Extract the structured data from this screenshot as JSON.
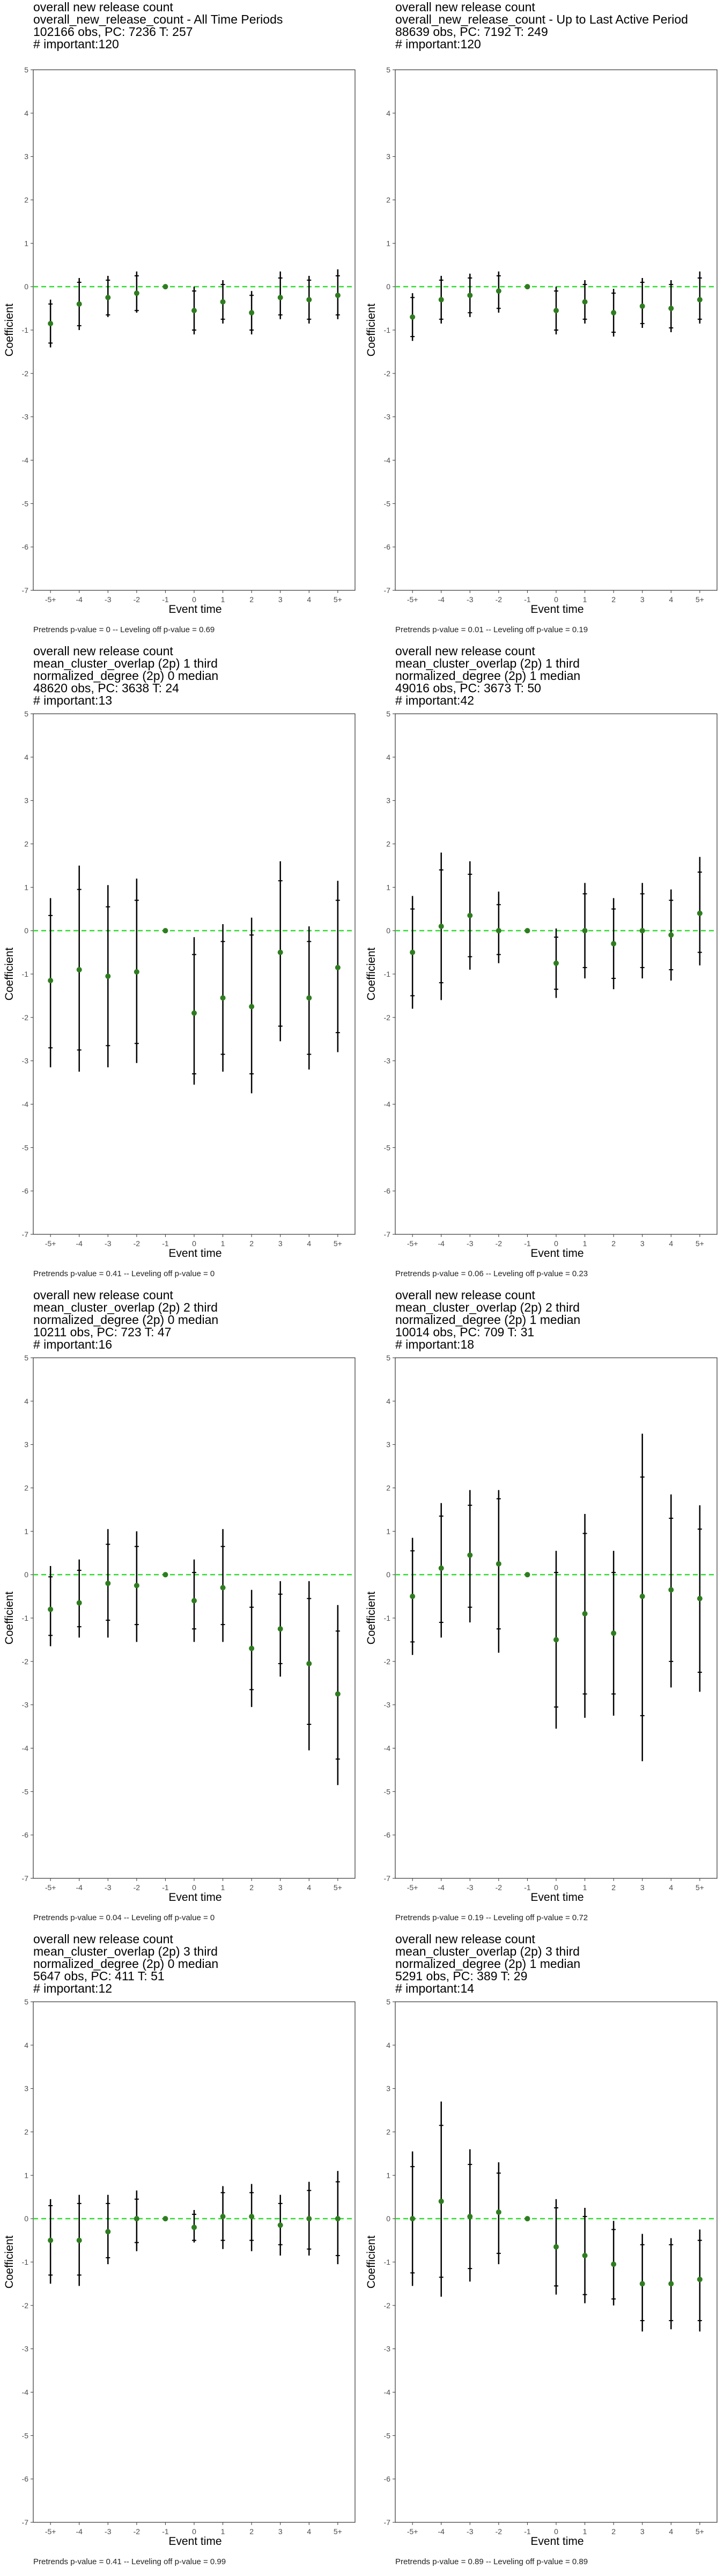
{
  "x_axis_label": "Event time",
  "y_axis_label": "Coefficient",
  "colors": {
    "point": "#2e7d1f",
    "zero_line": "#33dd33",
    "bars": "#000000",
    "frame": "#333333"
  },
  "chart_data": [
    {
      "type": "scatter",
      "title_lines": [
        "overall new release count",
        "overall_new_release_count - All Time Periods",
        "102166 obs, PC: 7236 T: 257",
        "# important:120"
      ],
      "footer": "Pretrends p-value = 0 -- Leveling off p-value = 0.69",
      "categories": [
        "-5+",
        "-4",
        "-3",
        "-2",
        "-1",
        "0",
        "1",
        "2",
        "3",
        "4",
        "5+"
      ],
      "ylim": [
        -7,
        5
      ],
      "estimate": [
        -0.85,
        -0.4,
        -0.25,
        -0.15,
        0,
        -0.55,
        -0.35,
        -0.6,
        -0.25,
        -0.3,
        -0.2
      ],
      "ci95_low": [
        -1.4,
        -1.0,
        -0.7,
        -0.6,
        0,
        -1.1,
        -0.85,
        -1.1,
        -0.75,
        -0.85,
        -0.75
      ],
      "ci95_high": [
        -0.3,
        0.2,
        0.25,
        0.35,
        0,
        0.0,
        0.15,
        -0.1,
        0.35,
        0.25,
        0.4
      ],
      "ci90_low": [
        -1.3,
        -0.9,
        -0.65,
        -0.55,
        0,
        -1.0,
        -0.75,
        -1.0,
        -0.65,
        -0.75,
        -0.65
      ],
      "ci90_high": [
        -0.4,
        0.1,
        0.15,
        0.25,
        0,
        -0.1,
        0.05,
        -0.2,
        0.2,
        0.15,
        0.25
      ]
    },
    {
      "type": "scatter",
      "title_lines": [
        "overall new release count",
        "overall_new_release_count - Up to Last Active Period",
        "88639 obs, PC: 7192 T: 249",
        "# important:120"
      ],
      "footer": "Pretrends p-value = 0.01 -- Leveling off p-value = 0.19",
      "categories": [
        "-5+",
        "-4",
        "-3",
        "-2",
        "-1",
        "0",
        "1",
        "2",
        "3",
        "4",
        "5+"
      ],
      "ylim": [
        -7,
        5
      ],
      "estimate": [
        -0.7,
        -0.3,
        -0.2,
        -0.1,
        0,
        -0.55,
        -0.35,
        -0.6,
        -0.45,
        -0.5,
        -0.3
      ],
      "ci95_low": [
        -1.25,
        -0.85,
        -0.7,
        -0.6,
        0,
        -1.1,
        -0.85,
        -1.15,
        -0.95,
        -1.05,
        -0.85
      ],
      "ci95_high": [
        -0.15,
        0.25,
        0.3,
        0.35,
        0,
        0.0,
        0.15,
        -0.05,
        0.2,
        0.15,
        0.35
      ],
      "ci90_low": [
        -1.15,
        -0.75,
        -0.6,
        -0.5,
        0,
        -1.0,
        -0.75,
        -1.05,
        -0.85,
        -0.95,
        -0.75
      ],
      "ci90_high": [
        -0.25,
        0.15,
        0.2,
        0.25,
        0,
        -0.1,
        0.05,
        -0.15,
        0.1,
        0.05,
        0.2
      ]
    },
    {
      "type": "scatter",
      "title_lines": [
        "overall new release count",
        "mean_cluster_overlap (2p) 1 third",
        "normalized_degree (2p) 0 median",
        "48620 obs, PC: 3638 T: 24",
        "# important:13"
      ],
      "footer": "Pretrends p-value = 0.41 -- Leveling off p-value = 0",
      "categories": [
        "-5+",
        "-4",
        "-3",
        "-2",
        "-1",
        "0",
        "1",
        "2",
        "3",
        "4",
        "5+"
      ],
      "ylim": [
        -7,
        5
      ],
      "estimate": [
        -1.15,
        -0.9,
        -1.05,
        -0.95,
        0,
        -1.9,
        -1.55,
        -1.75,
        -0.5,
        -1.55,
        -0.85
      ],
      "ci95_low": [
        -3.15,
        -3.25,
        -3.15,
        -3.05,
        0,
        -3.55,
        -3.25,
        -3.75,
        -2.55,
        -3.2,
        -2.8
      ],
      "ci95_high": [
        0.75,
        1.5,
        1.05,
        1.2,
        0,
        -0.15,
        0.15,
        0.3,
        1.6,
        0.1,
        1.15
      ],
      "ci90_low": [
        -2.7,
        -2.75,
        -2.65,
        -2.6,
        0,
        -3.3,
        -2.85,
        -3.3,
        -2.2,
        -2.85,
        -2.35
      ],
      "ci90_high": [
        0.35,
        0.95,
        0.55,
        0.7,
        0,
        -0.55,
        -0.25,
        -0.1,
        1.15,
        -0.25,
        0.7
      ]
    },
    {
      "type": "scatter",
      "title_lines": [
        "overall new release count",
        "mean_cluster_overlap (2p) 1 third",
        "normalized_degree (2p) 1 median",
        "49016 obs, PC: 3673 T: 50",
        "# important:42"
      ],
      "footer": "Pretrends p-value = 0.06 -- Leveling off p-value = 0.23",
      "categories": [
        "-5+",
        "-4",
        "-3",
        "-2",
        "-1",
        "0",
        "1",
        "2",
        "3",
        "4",
        "5+"
      ],
      "ylim": [
        -7,
        5
      ],
      "estimate": [
        -0.5,
        0.1,
        0.35,
        0.0,
        0,
        -0.75,
        0.0,
        -0.3,
        0.0,
        -0.1,
        0.4
      ],
      "ci95_low": [
        -1.8,
        -1.6,
        -0.9,
        -0.75,
        0,
        -1.55,
        -1.1,
        -1.35,
        -1.1,
        -1.15,
        -0.8
      ],
      "ci95_high": [
        0.8,
        1.8,
        1.6,
        0.9,
        0,
        0.05,
        1.1,
        0.75,
        1.1,
        0.95,
        1.7
      ],
      "ci90_low": [
        -1.5,
        -1.2,
        -0.6,
        -0.55,
        0,
        -1.35,
        -0.85,
        -1.1,
        -0.85,
        -0.9,
        -0.5
      ],
      "ci90_high": [
        0.5,
        1.4,
        1.3,
        0.6,
        0,
        -0.15,
        0.85,
        0.5,
        0.85,
        0.7,
        1.35
      ]
    },
    {
      "type": "scatter",
      "title_lines": [
        "overall new release count",
        "mean_cluster_overlap (2p) 2 third",
        "normalized_degree (2p) 0 median",
        "10211 obs, PC: 723 T: 47",
        "# important:16"
      ],
      "footer": "Pretrends p-value = 0.04 -- Leveling off p-value = 0",
      "categories": [
        "-5+",
        "-4",
        "-3",
        "-2",
        "-1",
        "0",
        "1",
        "2",
        "3",
        "4",
        "5+"
      ],
      "ylim": [
        -7,
        5
      ],
      "estimate": [
        -0.8,
        -0.65,
        -0.2,
        -0.25,
        0,
        -0.6,
        -0.3,
        -1.7,
        -1.25,
        -2.05,
        -2.75
      ],
      "ci95_low": [
        -1.65,
        -1.45,
        -1.45,
        -1.55,
        0,
        -1.55,
        -1.55,
        -3.05,
        -2.35,
        -4.05,
        -4.85
      ],
      "ci95_high": [
        0.2,
        0.35,
        1.05,
        1.0,
        0,
        0.35,
        1.05,
        -0.35,
        -0.15,
        -0.15,
        -0.7
      ],
      "ci90_low": [
        -1.4,
        -1.2,
        -1.05,
        -1.15,
        0,
        -1.25,
        -1.15,
        -2.65,
        -2.05,
        -3.45,
        -4.25
      ],
      "ci90_high": [
        -0.05,
        0.1,
        0.7,
        0.65,
        0,
        0.05,
        0.65,
        -0.75,
        -0.45,
        -0.55,
        -1.3
      ]
    },
    {
      "type": "scatter",
      "title_lines": [
        "overall new release count",
        "mean_cluster_overlap (2p) 2 third",
        "normalized_degree (2p) 1 median",
        "10014 obs, PC: 709 T: 31",
        "# important:18"
      ],
      "footer": "Pretrends p-value = 0.19 -- Leveling off p-value = 0.72",
      "categories": [
        "-5+",
        "-4",
        "-3",
        "-2",
        "-1",
        "0",
        "1",
        "2",
        "3",
        "4",
        "5+"
      ],
      "ylim": [
        -7,
        5
      ],
      "estimate": [
        -0.5,
        0.15,
        0.45,
        0.25,
        0,
        -1.5,
        -0.9,
        -1.35,
        -0.5,
        -0.35,
        -0.55
      ],
      "ci95_low": [
        -1.85,
        -1.45,
        -1.1,
        -1.8,
        0,
        -3.55,
        -3.3,
        -3.25,
        -4.3,
        -2.6,
        -2.7
      ],
      "ci95_high": [
        0.85,
        1.65,
        1.95,
        1.95,
        0,
        0.55,
        1.4,
        0.55,
        3.25,
        1.85,
        1.6
      ],
      "ci90_low": [
        -1.55,
        -1.1,
        -0.75,
        -1.25,
        0,
        -3.05,
        -2.75,
        -2.75,
        -3.25,
        -2.0,
        -2.25
      ],
      "ci90_high": [
        0.55,
        1.35,
        1.6,
        1.75,
        0,
        0.05,
        0.95,
        0.05,
        2.25,
        1.3,
        1.05
      ]
    },
    {
      "type": "scatter",
      "title_lines": [
        "overall new release count",
        "mean_cluster_overlap (2p) 3 third",
        "normalized_degree (2p) 0 median",
        "5647 obs, PC: 411 T: 51",
        "# important:12"
      ],
      "footer": "Pretrends p-value = 0.41 -- Leveling off p-value = 0.99",
      "categories": [
        "-5+",
        "-4",
        "-3",
        "-2",
        "-1",
        "0",
        "1",
        "2",
        "3",
        "4",
        "5+"
      ],
      "ylim": [
        -7,
        5
      ],
      "estimate": [
        -0.5,
        -0.5,
        -0.3,
        0.0,
        0,
        -0.2,
        0.05,
        0.05,
        -0.15,
        0.0,
        0.0
      ],
      "ci95_low": [
        -1.5,
        -1.55,
        -1.05,
        -0.75,
        0,
        -0.55,
        -0.7,
        -0.75,
        -0.85,
        -0.85,
        -1.05
      ],
      "ci95_high": [
        0.45,
        0.55,
        0.55,
        0.65,
        0,
        0.2,
        0.75,
        0.8,
        0.55,
        0.85,
        1.1
      ],
      "ci90_low": [
        -1.3,
        -1.3,
        -0.9,
        -0.55,
        0,
        -0.5,
        -0.5,
        -0.5,
        -0.6,
        -0.7,
        -0.85
      ],
      "ci90_high": [
        0.3,
        0.35,
        0.35,
        0.45,
        0,
        0.1,
        0.6,
        0.6,
        0.35,
        0.65,
        0.85
      ]
    },
    {
      "type": "scatter",
      "title_lines": [
        "overall new release count",
        "mean_cluster_overlap (2p) 3 third",
        "normalized_degree (2p) 1 median",
        "5291 obs, PC: 389 T: 29",
        "# important:14"
      ],
      "footer": "Pretrends p-value = 0.89 -- Leveling off p-value = 0.89",
      "categories": [
        "-5+",
        "-4",
        "-3",
        "-2",
        "-1",
        "0",
        "1",
        "2",
        "3",
        "4",
        "5+"
      ],
      "ylim": [
        -7,
        5
      ],
      "estimate": [
        0.0,
        0.4,
        0.05,
        0.15,
        0,
        -0.65,
        -0.85,
        -1.05,
        -1.5,
        -1.5,
        -1.4
      ],
      "ci95_low": [
        -1.55,
        -1.8,
        -1.45,
        -1.05,
        0,
        -1.75,
        -1.95,
        -2.0,
        -2.6,
        -2.55,
        -2.6
      ],
      "ci95_high": [
        1.55,
        2.7,
        1.6,
        1.3,
        0,
        0.45,
        0.25,
        -0.05,
        -0.35,
        -0.45,
        -0.25
      ],
      "ci90_low": [
        -1.25,
        -1.35,
        -1.15,
        -0.8,
        0,
        -1.55,
        -1.75,
        -1.85,
        -2.35,
        -2.35,
        -2.35
      ],
      "ci90_high": [
        1.2,
        2.15,
        1.25,
        1.05,
        0,
        0.25,
        0.05,
        -0.25,
        -0.6,
        -0.6,
        -0.5
      ]
    }
  ]
}
